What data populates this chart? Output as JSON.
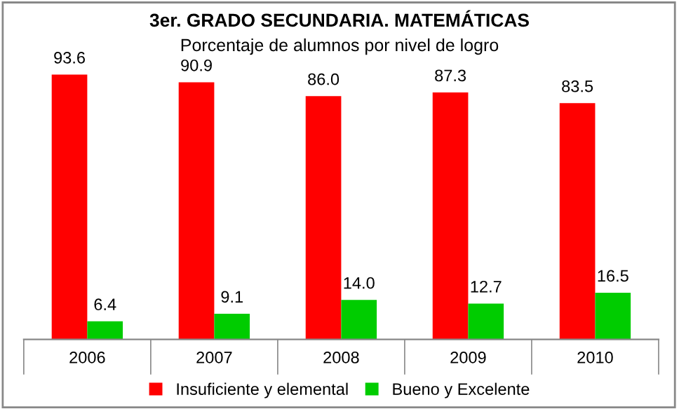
{
  "chart_data": {
    "type": "bar",
    "title": "3er. GRADO SECUNDARIA. MATEMÁTICAS",
    "subtitle": "Porcentaje de alumnos por nivel de logro",
    "categories": [
      "2006",
      "2007",
      "2008",
      "2009",
      "2010"
    ],
    "series": [
      {
        "name": "Insuficiente y elemental",
        "color": "#ff0000",
        "values": [
          93.6,
          90.9,
          86.0,
          87.3,
          83.5
        ],
        "value_labels": [
          "93.6",
          "90.9",
          "86.0",
          "87.3",
          "83.5"
        ]
      },
      {
        "name": "Bueno y Excelente",
        "color": "#00cc00",
        "values": [
          6.4,
          9.1,
          14.0,
          12.7,
          16.5
        ],
        "value_labels": [
          "6.4",
          "9.1",
          "14.0",
          "12.7",
          "16.5"
        ]
      }
    ],
    "tick_labels": "x",
    "grid": false,
    "legend": "bottom"
  }
}
